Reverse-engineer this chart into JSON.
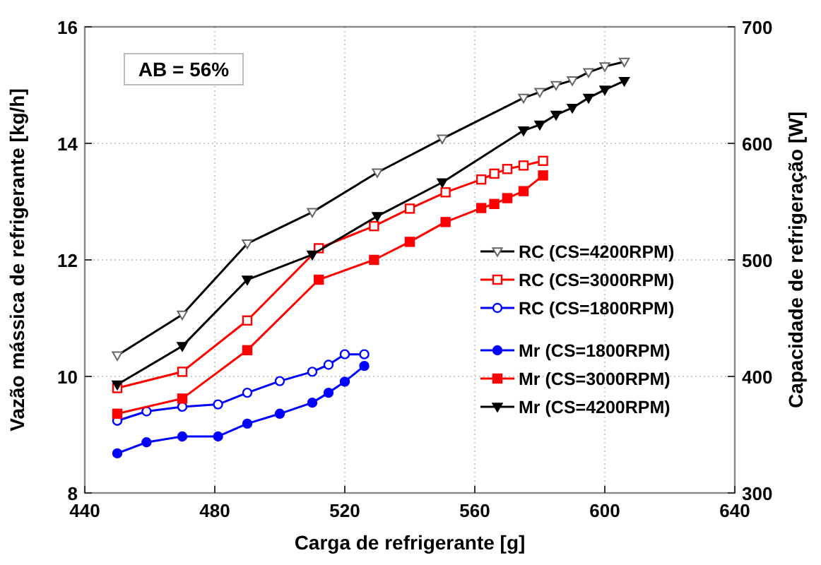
{
  "chart_data": {
    "type": "line",
    "xlabel": "Carga de refrigerante [g]",
    "ylabel": "Vazão mássica de refrigerante [kg/h]",
    "y2label": "Capacidade de refrigeração [W]",
    "xlim": [
      440,
      640
    ],
    "xticks": [
      440,
      480,
      520,
      560,
      600,
      640
    ],
    "ylim": [
      8,
      16
    ],
    "yticks": [
      8,
      10,
      12,
      14,
      16
    ],
    "y2lim": [
      300,
      700
    ],
    "y2ticks": [
      300,
      400,
      500,
      600,
      700
    ],
    "grid": true,
    "legend": "right",
    "annotations": [
      "AB = 56%"
    ],
    "series": [
      {
        "name": "RC (CS=4200RPM)",
        "color": "#000000",
        "axis": "y2",
        "marker": "triangle",
        "x": [
          450,
          470,
          490,
          510,
          530,
          550,
          575,
          580,
          585,
          590,
          595,
          600,
          606
        ],
        "values": [
          418,
          453,
          514,
          541,
          575,
          604,
          639,
          644,
          650,
          654,
          661,
          666,
          670
        ]
      },
      {
        "name": "RC (CS=3000RPM)",
        "color": "#ff0000",
        "axis": "y2",
        "marker": "square",
        "x": [
          450,
          470,
          490,
          512,
          529,
          540,
          551,
          562,
          566,
          570,
          575,
          581
        ],
        "values": [
          390,
          404,
          448,
          510,
          529,
          544,
          558,
          569,
          574,
          578,
          581,
          585
        ]
      },
      {
        "name": "RC (CS=1800RPM)",
        "color": "#0000ff",
        "axis": "y2",
        "marker": "circle",
        "x": [
          450,
          459,
          470,
          481,
          490,
          500,
          510,
          515,
          520,
          526
        ],
        "values": [
          362,
          370,
          374,
          376,
          386,
          396,
          404,
          410,
          419,
          419
        ]
      },
      {
        "name": "Mr (CS=1800RPM)",
        "color": "#0000ff",
        "axis": "y",
        "marker": "circle",
        "x": [
          450,
          459,
          470,
          481,
          490,
          500,
          510,
          515,
          520,
          526
        ],
        "values": [
          8.68,
          8.87,
          8.97,
          8.97,
          9.19,
          9.36,
          9.55,
          9.72,
          9.91,
          10.18
        ]
      },
      {
        "name": "Mr (CS=3000RPM)",
        "color": "#ff0000",
        "axis": "y",
        "marker": "square",
        "x": [
          450,
          470,
          490,
          512,
          529,
          540,
          551,
          562,
          566,
          570,
          575,
          581
        ],
        "values": [
          9.36,
          9.62,
          10.45,
          11.66,
          12.0,
          12.31,
          12.65,
          12.89,
          12.96,
          13.06,
          13.18,
          13.45
        ]
      },
      {
        "name": "Mr (CS=4200RPM)",
        "color": "#000000",
        "axis": "y",
        "marker": "triangle",
        "x": [
          450,
          470,
          490,
          510,
          530,
          550,
          575,
          580,
          585,
          590,
          595,
          600,
          606
        ],
        "values": [
          9.86,
          10.52,
          11.66,
          12.09,
          12.75,
          13.33,
          14.22,
          14.32,
          14.49,
          14.61,
          14.78,
          14.92,
          15.07
        ]
      }
    ]
  }
}
